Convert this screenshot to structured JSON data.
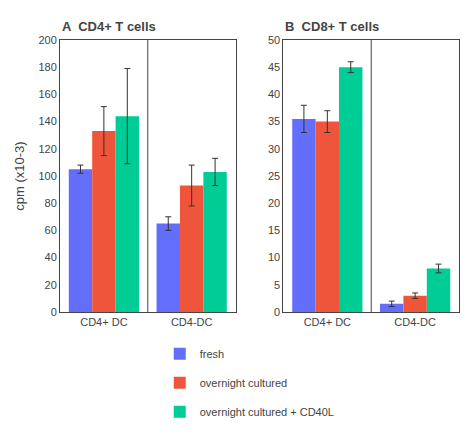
{
  "chart_data": [
    {
      "type": "bar",
      "title": "A  CD4+ T cells",
      "ylabel": "cpm (x10-3)",
      "categories": [
        "CD4+ DC",
        "CD4-DC"
      ],
      "series": [
        {
          "name": "fresh",
          "color": "#636efa",
          "values": [
            105,
            65
          ],
          "errors": [
            3,
            5
          ]
        },
        {
          "name": "overnight cultured",
          "color": "#EF553B",
          "values": [
            133,
            93
          ],
          "errors": [
            18,
            15
          ]
        },
        {
          "name": "overnight cultured + CD40L",
          "color": "#00cc96",
          "values": [
            144,
            103
          ],
          "errors": [
            35,
            10
          ]
        }
      ],
      "ylim": [
        0,
        200
      ],
      "yticks": [
        0,
        20,
        40,
        60,
        80,
        100,
        120,
        140,
        160,
        180,
        200
      ],
      "grid": false,
      "legend": "bottom"
    },
    {
      "type": "bar",
      "title": "B  CD8+ T cells",
      "categories": [
        "CD4+ DC",
        "CD4-DC"
      ],
      "series": [
        {
          "name": "fresh",
          "color": "#636efa",
          "values": [
            35.5,
            1.5
          ],
          "errors": [
            2.5,
            0.5
          ]
        },
        {
          "name": "overnight cultured",
          "color": "#EF553B",
          "values": [
            35,
            3
          ],
          "errors": [
            2,
            0.5
          ]
        },
        {
          "name": "overnight cultured + CD40L",
          "color": "#00cc96",
          "values": [
            45,
            8
          ],
          "errors": [
            1,
            0.8
          ]
        }
      ],
      "ylim": [
        0,
        50
      ],
      "yticks": [
        0,
        5,
        10,
        15,
        20,
        25,
        30,
        35,
        40,
        45,
        50
      ],
      "grid": false,
      "legend": "bottom"
    }
  ]
}
